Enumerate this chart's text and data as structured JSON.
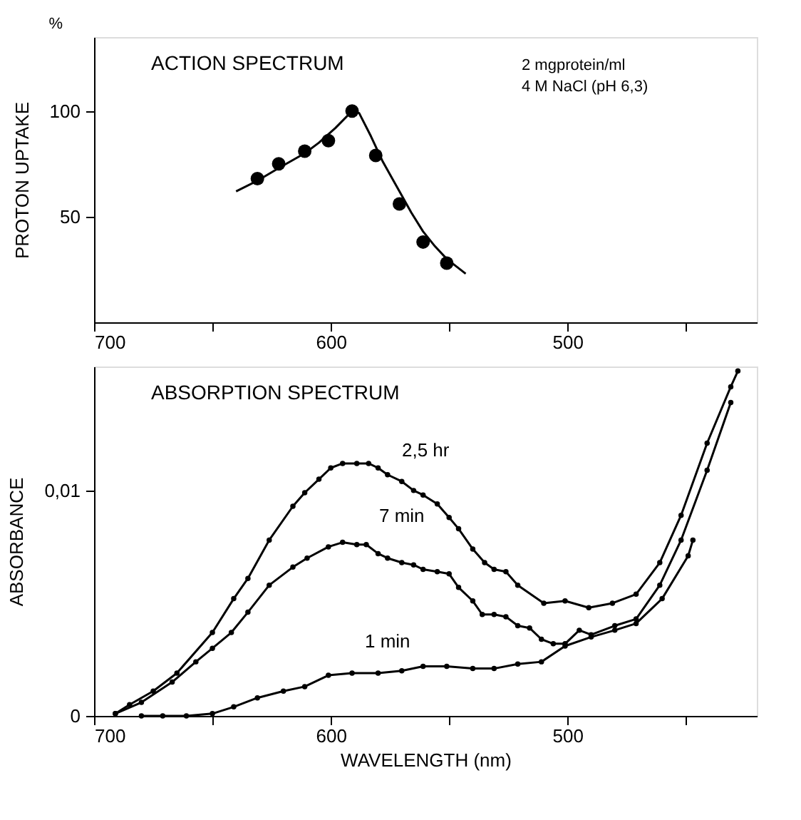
{
  "chart_data": [
    {
      "type": "scatter",
      "title": "ACTION SPECTRUM",
      "ylabel": "PROTON UPTAKE",
      "xlim": [
        700,
        420
      ],
      "ylim": [
        0,
        135
      ],
      "xticks": [
        700,
        {
          "value": 650,
          "label": null
        },
        600,
        {
          "value": 550,
          "label": null
        },
        500,
        {
          "value": 450,
          "label": null
        }
      ],
      "yticks": [
        50,
        100
      ],
      "grid": false,
      "marker": "circle",
      "series": [
        {
          "type": "scatter",
          "color": "#000000",
          "x": [
            631,
            622,
            611,
            601,
            591,
            581,
            571,
            561,
            551
          ],
          "values": [
            68,
            75,
            81,
            86,
            100,
            79,
            56,
            38,
            28
          ]
        },
        {
          "type": "line",
          "marker": "none",
          "color": "#000000",
          "x": [
            640,
            631,
            622,
            611,
            605,
            598,
            591,
            588,
            583,
            578,
            571,
            566,
            561,
            556,
            551,
            543
          ],
          "values": [
            62,
            67,
            73,
            80,
            85,
            92,
            100,
            99,
            88,
            76,
            62,
            52,
            43,
            36,
            30,
            23
          ]
        }
      ],
      "annotations": [
        "%",
        "2 mgprotein/ml",
        "4 M NaCl  (pH 6,3)"
      ]
    },
    {
      "type": "line",
      "title": "ABSORPTION SPECTRUM",
      "xlabel": "WAVELENGTH     (nm)",
      "ylabel": "ABSORBANCE",
      "xlim": [
        700,
        420
      ],
      "ylim": [
        0,
        0.0155
      ],
      "xticks": [
        700,
        {
          "value": 650,
          "label": null
        },
        600,
        {
          "value": 550,
          "label": null
        },
        500,
        {
          "value": 450,
          "label": null
        }
      ],
      "yticks": [
        0,
        {
          "value": 0.01,
          "label": "0,01"
        }
      ],
      "grid": false,
      "marker": "circle",
      "line_style": "solid",
      "series": [
        {
          "color": "#000000",
          "x": [
            691,
            685,
            675,
            665,
            650,
            641,
            635,
            626,
            616,
            611,
            605,
            600,
            595,
            589,
            584,
            580,
            576,
            570,
            565,
            561,
            555,
            550,
            546,
            540,
            535,
            531,
            526,
            521,
            510,
            501,
            491,
            481,
            471,
            461,
            452,
            441,
            431,
            428
          ],
          "values": [
            0.0001,
            0.0005,
            0.0011,
            0.0019,
            0.0037,
            0.0052,
            0.0061,
            0.0078,
            0.0093,
            0.0099,
            0.0105,
            0.011,
            0.0112,
            0.0112,
            0.0112,
            0.011,
            0.0107,
            0.0104,
            0.01,
            0.0098,
            0.0094,
            0.0088,
            0.0083,
            0.0074,
            0.0068,
            0.0065,
            0.0064,
            0.0058,
            0.005,
            0.0051,
            0.0048,
            0.005,
            0.0054,
            0.0068,
            0.0089,
            0.0121,
            0.0146,
            0.0153
          ]
        },
        {
          "color": "#000000",
          "x": [
            691,
            680,
            667,
            657,
            650,
            642,
            635,
            626,
            616,
            610,
            601,
            595,
            589,
            585,
            580,
            576,
            570,
            565,
            561,
            555,
            550,
            546,
            540,
            536,
            531,
            526,
            521,
            516,
            511,
            506,
            501,
            495,
            490,
            480,
            471,
            461,
            452,
            441,
            431
          ],
          "values": [
            0.0001,
            0.0006,
            0.0015,
            0.0024,
            0.003,
            0.0037,
            0.0046,
            0.0058,
            0.0066,
            0.007,
            0.0075,
            0.0077,
            0.0076,
            0.0076,
            0.0072,
            0.007,
            0.0068,
            0.0067,
            0.0065,
            0.0064,
            0.0063,
            0.0057,
            0.0051,
            0.0045,
            0.0045,
            0.0044,
            0.004,
            0.0039,
            0.0034,
            0.0032,
            0.0032,
            0.0038,
            0.0036,
            0.004,
            0.0043,
            0.0058,
            0.0078,
            0.0109,
            0.0139
          ]
        },
        {
          "color": "#000000",
          "x": [
            680,
            671,
            661,
            650,
            641,
            631,
            620,
            611,
            601,
            591,
            580,
            570,
            561,
            551,
            540,
            531,
            521,
            511,
            501,
            490,
            480,
            471,
            460,
            449,
            447
          ],
          "values": [
            0.0,
            0.0,
            0.0,
            0.0001,
            0.0004,
            0.0008,
            0.0011,
            0.0013,
            0.0018,
            0.0019,
            0.0019,
            0.002,
            0.0022,
            0.0022,
            0.0021,
            0.0021,
            0.0023,
            0.0024,
            0.0031,
            0.0035,
            0.0038,
            0.0041,
            0.0052,
            0.0071,
            0.0078
          ]
        }
      ],
      "annotations": [
        "2,5  hr",
        "7 min",
        "1 min"
      ]
    }
  ]
}
